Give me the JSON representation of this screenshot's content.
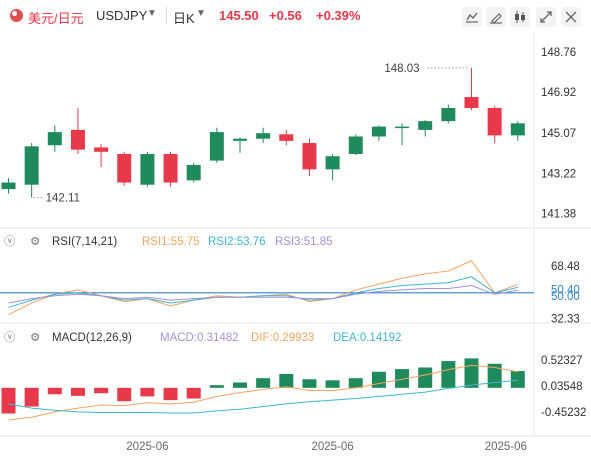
{
  "header": {
    "symbol_cn": "美元/日元",
    "symbol": "USDJPY",
    "timeframe": "日K",
    "price": "145.50",
    "change": "+0.56",
    "change_pct": "+0.39%",
    "toolbar_icons": [
      "indicator-icon",
      "draw-icon",
      "candle-type-icon",
      "expand-icon",
      "settings-icon"
    ]
  },
  "colors": {
    "up": "#e8394a",
    "down": "#1f8a5b",
    "rsi1": "#f4a460",
    "rsi2": "#3fb6d0",
    "rsi3": "#a68fd8",
    "dif": "#f4a460",
    "dea": "#3fb6d0",
    "axis_text": "#333333",
    "blue_line": "#2f80c8"
  },
  "chart_data": [
    {
      "type": "candlestick",
      "title": "USDJPY 日K",
      "ylim": [
        141.0,
        149.3
      ],
      "y_ticks": [
        "148.76",
        "146.92",
        "145.07",
        "143.22",
        "141.38"
      ],
      "y_tick_values": [
        148.76,
        146.92,
        145.07,
        143.22,
        141.38
      ],
      "annotations": {
        "high": "148.03",
        "low": "142.11"
      },
      "candles": [
        {
          "o": 142.5,
          "c": 142.8,
          "h": 143.0,
          "l": 142.3
        },
        {
          "o": 142.7,
          "c": 144.45,
          "h": 144.6,
          "l": 142.11
        },
        {
          "o": 144.5,
          "c": 145.1,
          "h": 145.4,
          "l": 144.2
        },
        {
          "o": 145.2,
          "c": 144.3,
          "h": 146.2,
          "l": 144.1
        },
        {
          "o": 144.4,
          "c": 144.2,
          "h": 144.55,
          "l": 143.5
        },
        {
          "o": 144.1,
          "c": 142.8,
          "h": 144.2,
          "l": 142.65
        },
        {
          "o": 142.7,
          "c": 144.1,
          "h": 144.2,
          "l": 142.6
        },
        {
          "o": 144.1,
          "c": 142.8,
          "h": 144.2,
          "l": 142.6
        },
        {
          "o": 142.9,
          "c": 143.6,
          "h": 143.7,
          "l": 142.8
        },
        {
          "o": 143.8,
          "c": 145.1,
          "h": 145.3,
          "l": 143.7
        },
        {
          "o": 144.7,
          "c": 144.8,
          "h": 144.85,
          "l": 144.15
        },
        {
          "o": 144.8,
          "c": 145.05,
          "h": 145.3,
          "l": 144.6
        },
        {
          "o": 145.0,
          "c": 144.7,
          "h": 145.2,
          "l": 144.5
        },
        {
          "o": 144.6,
          "c": 143.4,
          "h": 144.8,
          "l": 143.1
        },
        {
          "o": 143.4,
          "c": 144.0,
          "h": 144.1,
          "l": 142.9
        },
        {
          "o": 144.1,
          "c": 144.9,
          "h": 145.0,
          "l": 144.05
        },
        {
          "o": 144.9,
          "c": 145.35,
          "h": 145.4,
          "l": 144.7
        },
        {
          "o": 145.35,
          "c": 145.35,
          "h": 145.5,
          "l": 144.5
        },
        {
          "o": 145.2,
          "c": 145.6,
          "h": 145.65,
          "l": 144.9
        },
        {
          "o": 145.6,
          "c": 146.2,
          "h": 146.35,
          "l": 145.5
        },
        {
          "o": 146.7,
          "c": 146.2,
          "h": 148.03,
          "l": 146.1
        },
        {
          "o": 146.2,
          "c": 144.95,
          "h": 146.3,
          "l": 144.6
        },
        {
          "o": 144.95,
          "c": 145.5,
          "h": 145.6,
          "l": 144.7
        }
      ]
    },
    {
      "type": "line",
      "title": "RSI(7,14,21)",
      "legend": {
        "name": "RSI(7,14,21)",
        "rsi1": "RSI1:55.75",
        "rsi2": "RSI2:53.76",
        "rsi3": "RSI3:51.85"
      },
      "ylim": [
        30,
        78
      ],
      "y_ticks": [
        "68.48",
        "50.40",
        "50.00",
        "32.33"
      ],
      "y_tick_values": [
        68.48,
        50.4,
        50.0,
        32.33
      ],
      "series": [
        {
          "name": "RSI1",
          "values": [
            35,
            43,
            49,
            52,
            48,
            44,
            46,
            41,
            45,
            48,
            47,
            48,
            49,
            44,
            46,
            52,
            56,
            60,
            63,
            65,
            72,
            50,
            55.75
          ]
        },
        {
          "name": "RSI2",
          "values": [
            40,
            45,
            49,
            50,
            48,
            45,
            46,
            43,
            45,
            47,
            47,
            48,
            48,
            45,
            46,
            50,
            53,
            55,
            56,
            57,
            61,
            50,
            53.76
          ]
        },
        {
          "name": "RSI3",
          "values": [
            43,
            46,
            48,
            49,
            48,
            46,
            47,
            45,
            46,
            47,
            47,
            47,
            47,
            46,
            46,
            49,
            51,
            52,
            53,
            53,
            55,
            49,
            51.85
          ]
        }
      ]
    },
    {
      "type": "bar",
      "title": "MACD(12,26,9)",
      "legend": {
        "name": "MACD(12,26,9)",
        "macd": "MACD:0.31482",
        "dif": "DIF:0.29933",
        "dea": "DEA:0.14192"
      },
      "ylim": [
        -0.9,
        0.8
      ],
      "y_ticks": [
        "0.52327",
        "0.03548",
        "-0.45232"
      ],
      "y_tick_values": [
        0.52327,
        0.03548,
        -0.45232
      ],
      "macd": [
        -0.48,
        -0.35,
        -0.12,
        -0.15,
        -0.1,
        -0.25,
        -0.16,
        -0.23,
        -0.2,
        0.05,
        0.1,
        0.18,
        0.26,
        0.16,
        0.14,
        0.18,
        0.3,
        0.35,
        0.38,
        0.5,
        0.55,
        0.45,
        0.31482
      ],
      "dif": [
        -0.6,
        -0.55,
        -0.45,
        -0.38,
        -0.32,
        -0.33,
        -0.28,
        -0.3,
        -0.27,
        -0.16,
        -0.09,
        -0.03,
        0.02,
        -0.05,
        -0.05,
        0.0,
        0.08,
        0.16,
        0.24,
        0.34,
        0.42,
        0.38,
        0.29933
      ],
      "dea": [
        -0.3,
        -0.38,
        -0.42,
        -0.45,
        -0.46,
        -0.46,
        -0.46,
        -0.47,
        -0.47,
        -0.43,
        -0.4,
        -0.35,
        -0.3,
        -0.26,
        -0.23,
        -0.2,
        -0.16,
        -0.12,
        -0.08,
        -0.01,
        0.05,
        0.1,
        0.14192
      ]
    }
  ],
  "x_ticks": [
    "2025-06",
    "2025-06",
    "2025-06"
  ]
}
